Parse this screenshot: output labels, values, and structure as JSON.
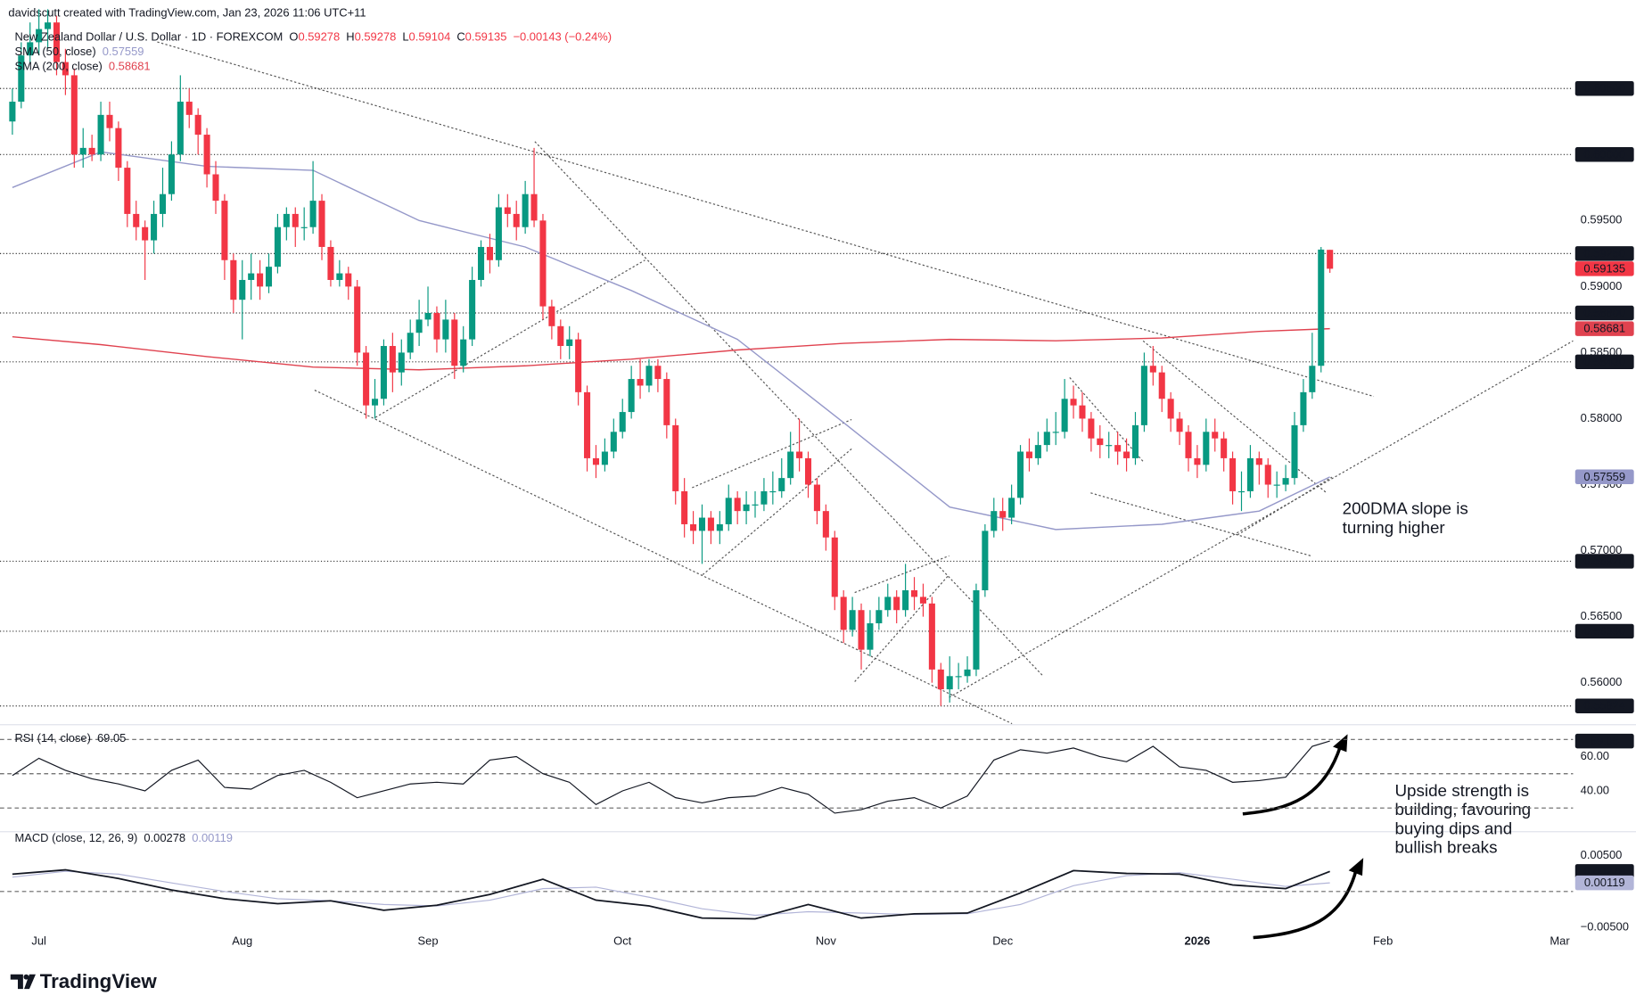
{
  "header": "davidscutt created with TradingView.com, Jan 23, 2026 11:06 UTC+11",
  "logo": "TradingView",
  "chart_data": [
    {
      "type": "candlestick",
      "title": "New Zealand Dollar / U.S. Dollar · 1D · FOREXCOM",
      "quote": [
        {
          "label": "O",
          "value": "0.59278"
        },
        {
          "label": "H",
          "value": "0.59278"
        },
        {
          "label": "L",
          "value": "0.59104"
        },
        {
          "label": "C",
          "value": "0.59135"
        }
      ],
      "change": "−0.00143 (−0.24%)",
      "xlim": [
        -1.4,
        176.5
      ],
      "xticks": [
        {
          "value": 3,
          "label": "Jul"
        },
        {
          "value": 26,
          "label": "Aug"
        },
        {
          "value": 47,
          "label": "Sep"
        },
        {
          "value": 69,
          "label": "Oct"
        },
        {
          "value": 92,
          "label": "Nov"
        },
        {
          "value": 112,
          "label": "Dec"
        },
        {
          "value": 134,
          "label": "2026"
        },
        {
          "value": 155,
          "label": "Feb"
        },
        {
          "value": 175,
          "label": "Mar"
        }
      ],
      "ylim": [
        0.5569,
        0.6117
      ],
      "yticks": [
        {
          "value": 0.595,
          "label": "0.59500"
        },
        {
          "value": 0.59,
          "label": "0.59000"
        },
        {
          "value": 0.585,
          "label": "0.58500"
        },
        {
          "value": 0.58,
          "label": "0.58000"
        },
        {
          "value": 0.575,
          "label": "0.57500"
        },
        {
          "value": 0.57,
          "label": "0.57000"
        },
        {
          "value": 0.565,
          "label": "0.56500"
        },
        {
          "value": 0.56,
          "label": "0.56000"
        }
      ],
      "levels": [
        {
          "value": 0.605,
          "label": "0.60500"
        },
        {
          "value": 0.6,
          "label": "0.60000"
        },
        {
          "value": 0.5925,
          "label": "0.59250"
        },
        {
          "value": 0.588,
          "label": "0.58800"
        },
        {
          "value": 0.5843,
          "label": "0.58430"
        },
        {
          "value": 0.5692,
          "label": "0.56920"
        },
        {
          "value": 0.5639,
          "label": "0.56390"
        },
        {
          "value": 0.55824,
          "label": "0.55824"
        }
      ],
      "candles": {
        "up_color": "#089981",
        "down_color": "#f23645",
        "last_label": "0.59135",
        "open": [
          0.6025,
          0.604,
          0.6075,
          0.6085,
          0.6095,
          0.61,
          0.607,
          0.606,
          0.6,
          0.6005,
          0.6,
          0.603,
          0.602,
          0.599,
          0.5955,
          0.5945,
          0.5935,
          0.5955,
          0.597,
          0.6,
          0.604,
          0.603,
          0.6015,
          0.5985,
          0.5965,
          0.592,
          0.589,
          0.5905,
          0.591,
          0.59,
          0.5915,
          0.5945,
          0.5955,
          0.5945,
          0.5945,
          0.5965,
          0.593,
          0.5905,
          0.591,
          0.59,
          0.585,
          0.581,
          0.5815,
          0.5855,
          0.5835,
          0.585,
          0.5865,
          0.5875,
          0.588,
          0.586,
          0.5875,
          0.584,
          0.586,
          0.5905,
          0.593,
          0.592,
          0.596,
          0.5955,
          0.5945,
          0.597,
          0.595,
          0.5885,
          0.587,
          0.5855,
          0.586,
          0.582,
          0.577,
          0.5765,
          0.5775,
          0.579,
          0.5805,
          0.583,
          0.5825,
          0.584,
          0.583,
          0.5795,
          0.5745,
          0.572,
          0.5715,
          0.5725,
          0.5715,
          0.572,
          0.574,
          0.573,
          0.5735,
          0.5735,
          0.5745,
          0.5745,
          0.5755,
          0.5775,
          0.577,
          0.575,
          0.573,
          0.571,
          0.5665,
          0.564,
          0.5655,
          0.5625,
          0.5645,
          0.5655,
          0.5665,
          0.5655,
          0.567,
          0.5665,
          0.566,
          0.561,
          0.5595,
          0.5605,
          0.5605,
          0.561,
          0.567,
          0.5715,
          0.573,
          0.5725,
          0.574,
          0.5775,
          0.577,
          0.578,
          0.579,
          0.579,
          0.5815,
          0.581,
          0.58,
          0.5785,
          0.578,
          0.578,
          0.5775,
          0.577,
          0.5795,
          0.584,
          0.5835,
          0.5815,
          0.58,
          0.579,
          0.577,
          0.5765,
          0.579,
          0.5785,
          0.577,
          0.5745,
          0.5745,
          0.577,
          0.5765,
          0.575,
          0.575,
          0.5755,
          0.5795,
          0.582,
          0.584,
          0.59278
        ],
        "high": [
          0.605,
          0.6085,
          0.61,
          0.611,
          0.611,
          0.6105,
          0.608,
          0.6065,
          0.602,
          0.6015,
          0.604,
          0.604,
          0.6025,
          0.5995,
          0.5965,
          0.595,
          0.5965,
          0.599,
          0.601,
          0.606,
          0.605,
          0.6035,
          0.602,
          0.5995,
          0.597,
          0.5925,
          0.592,
          0.5925,
          0.592,
          0.5925,
          0.5955,
          0.596,
          0.596,
          0.596,
          0.5995,
          0.597,
          0.5935,
          0.592,
          0.5915,
          0.5905,
          0.5855,
          0.583,
          0.586,
          0.5865,
          0.586,
          0.5875,
          0.589,
          0.59,
          0.5885,
          0.589,
          0.588,
          0.587,
          0.5915,
          0.5935,
          0.594,
          0.597,
          0.597,
          0.5965,
          0.598,
          0.6005,
          0.5955,
          0.589,
          0.5875,
          0.587,
          0.5865,
          0.5825,
          0.578,
          0.5785,
          0.58,
          0.5815,
          0.584,
          0.5845,
          0.5845,
          0.5845,
          0.5835,
          0.58,
          0.5755,
          0.573,
          0.5735,
          0.573,
          0.573,
          0.575,
          0.5745,
          0.5745,
          0.5745,
          0.5755,
          0.576,
          0.577,
          0.579,
          0.58,
          0.5775,
          0.5755,
          0.5735,
          0.5715,
          0.567,
          0.5665,
          0.566,
          0.5655,
          0.5665,
          0.5675,
          0.567,
          0.569,
          0.568,
          0.5675,
          0.5665,
          0.5615,
          0.562,
          0.5615,
          0.562,
          0.5675,
          0.572,
          0.574,
          0.574,
          0.575,
          0.578,
          0.5785,
          0.579,
          0.58,
          0.5805,
          0.583,
          0.5825,
          0.582,
          0.5805,
          0.5795,
          0.579,
          0.579,
          0.5785,
          0.5805,
          0.585,
          0.5855,
          0.584,
          0.582,
          0.5805,
          0.5795,
          0.578,
          0.58,
          0.58,
          0.579,
          0.5775,
          0.576,
          0.578,
          0.5775,
          0.577,
          0.576,
          0.5765,
          0.5805,
          0.583,
          0.5865,
          0.593,
          0.59278
        ],
        "low": [
          0.6015,
          0.6035,
          0.607,
          0.6075,
          0.608,
          0.606,
          0.6045,
          0.599,
          0.599,
          0.5995,
          0.5995,
          0.601,
          0.598,
          0.5945,
          0.5935,
          0.5905,
          0.5925,
          0.5945,
          0.5965,
          0.5995,
          0.602,
          0.6,
          0.5975,
          0.5955,
          0.5905,
          0.588,
          0.586,
          0.589,
          0.589,
          0.5895,
          0.591,
          0.5935,
          0.593,
          0.5935,
          0.594,
          0.592,
          0.59,
          0.59,
          0.589,
          0.584,
          0.58,
          0.58,
          0.581,
          0.582,
          0.5825,
          0.5845,
          0.5855,
          0.587,
          0.585,
          0.585,
          0.583,
          0.5835,
          0.5855,
          0.59,
          0.591,
          0.5915,
          0.5945,
          0.5935,
          0.594,
          0.5945,
          0.5875,
          0.586,
          0.5845,
          0.5845,
          0.581,
          0.576,
          0.5755,
          0.576,
          0.577,
          0.5785,
          0.58,
          0.5815,
          0.582,
          0.582,
          0.5785,
          0.5735,
          0.571,
          0.5705,
          0.569,
          0.5705,
          0.5705,
          0.5715,
          0.572,
          0.572,
          0.5725,
          0.573,
          0.5735,
          0.574,
          0.575,
          0.576,
          0.574,
          0.572,
          0.57,
          0.5655,
          0.563,
          0.5635,
          0.561,
          0.562,
          0.564,
          0.565,
          0.5645,
          0.565,
          0.5655,
          0.565,
          0.56,
          0.55824,
          0.5585,
          0.5595,
          0.56,
          0.5605,
          0.5665,
          0.571,
          0.5715,
          0.572,
          0.5735,
          0.576,
          0.5765,
          0.5775,
          0.578,
          0.5785,
          0.58,
          0.579,
          0.5775,
          0.577,
          0.577,
          0.5765,
          0.576,
          0.5765,
          0.579,
          0.5825,
          0.5805,
          0.579,
          0.578,
          0.576,
          0.5755,
          0.576,
          0.5775,
          0.576,
          0.5735,
          0.573,
          0.574,
          0.575,
          0.574,
          0.574,
          0.5745,
          0.575,
          0.579,
          0.5815,
          0.5835,
          0.59104
        ],
        "close": [
          0.604,
          0.6075,
          0.6085,
          0.6095,
          0.61,
          0.607,
          0.606,
          0.6,
          0.6005,
          0.6,
          0.603,
          0.602,
          0.599,
          0.5955,
          0.5945,
          0.5935,
          0.5955,
          0.597,
          0.6,
          0.604,
          0.603,
          0.6015,
          0.5985,
          0.5965,
          0.592,
          0.589,
          0.5905,
          0.591,
          0.59,
          0.5915,
          0.5945,
          0.5955,
          0.5945,
          0.5945,
          0.5965,
          0.593,
          0.5905,
          0.591,
          0.59,
          0.585,
          0.581,
          0.5815,
          0.5855,
          0.5835,
          0.585,
          0.5865,
          0.5875,
          0.588,
          0.586,
          0.5875,
          0.584,
          0.586,
          0.5905,
          0.593,
          0.592,
          0.596,
          0.5955,
          0.5945,
          0.597,
          0.595,
          0.5885,
          0.587,
          0.5855,
          0.586,
          0.582,
          0.577,
          0.5765,
          0.5775,
          0.579,
          0.5805,
          0.583,
          0.5825,
          0.584,
          0.583,
          0.5795,
          0.5745,
          0.572,
          0.5715,
          0.5725,
          0.5715,
          0.572,
          0.574,
          0.573,
          0.5735,
          0.5735,
          0.5745,
          0.5745,
          0.5755,
          0.5775,
          0.577,
          0.575,
          0.573,
          0.571,
          0.5665,
          0.564,
          0.5655,
          0.5625,
          0.5645,
          0.5655,
          0.5665,
          0.5655,
          0.567,
          0.5665,
          0.566,
          0.561,
          0.5595,
          0.5605,
          0.5605,
          0.561,
          0.567,
          0.5715,
          0.573,
          0.5725,
          0.574,
          0.5775,
          0.577,
          0.578,
          0.579,
          0.579,
          0.5815,
          0.581,
          0.58,
          0.5785,
          0.578,
          0.578,
          0.5775,
          0.577,
          0.5795,
          0.584,
          0.5835,
          0.5815,
          0.58,
          0.579,
          0.577,
          0.5765,
          0.579,
          0.5785,
          0.577,
          0.5745,
          0.5745,
          0.577,
          0.5765,
          0.575,
          0.575,
          0.5755,
          0.5795,
          0.582,
          0.584,
          0.5928,
          0.59135
        ]
      },
      "series": [
        {
          "name": "SMA (50, close)",
          "color": "#9598c9",
          "last_label": "0.57559",
          "x": [
            0,
            10,
            22,
            34,
            46,
            58,
            70,
            82,
            94,
            106,
            118,
            130,
            141,
            149
          ],
          "values": [
            0.5975,
            0.6002,
            0.5991,
            0.5988,
            0.595,
            0.593,
            0.5897,
            0.586,
            0.5797,
            0.5733,
            0.5716,
            0.572,
            0.573,
            0.57559
          ]
        },
        {
          "name": "SMA (200, close)",
          "color": "#e0424f",
          "last_label": "0.58681",
          "x": [
            0,
            10,
            22,
            34,
            46,
            58,
            70,
            82,
            94,
            106,
            118,
            130,
            141,
            149
          ],
          "values": [
            0.5862,
            0.5856,
            0.5847,
            0.5839,
            0.5837,
            0.584,
            0.5845,
            0.5852,
            0.5857,
            0.586,
            0.5859,
            0.5861,
            0.5866,
            0.58681
          ]
        }
      ],
      "annotations": [
        [
          "200DMA slope is",
          "turning higher"
        ],
        [
          "Upside strength is",
          "building, favouring",
          "buying dips and",
          "bullish breaks"
        ]
      ]
    },
    {
      "type": "line",
      "title": "RSI (14, close)",
      "color": "#131722",
      "last_label": "69.05",
      "ylim": [
        18,
        78
      ],
      "yticks": [
        {
          "value": 60,
          "label": "60.00"
        },
        {
          "value": 40,
          "label": "40.00"
        }
      ],
      "hlines": [
        70,
        50,
        30
      ],
      "x": [
        0,
        3,
        6,
        9,
        12,
        15,
        18,
        21,
        24,
        27,
        30,
        33,
        36,
        39,
        42,
        45,
        48,
        51,
        54,
        57,
        60,
        63,
        66,
        69,
        72,
        75,
        78,
        81,
        84,
        87,
        90,
        93,
        96,
        99,
        102,
        105,
        108,
        111,
        114,
        117,
        120,
        123,
        126,
        129,
        132,
        135,
        138,
        141,
        144,
        147,
        149
      ],
      "values": [
        49,
        59,
        52,
        47,
        44,
        40,
        52,
        58,
        42,
        41,
        49,
        52,
        45,
        36,
        40,
        44,
        45,
        44,
        58,
        60,
        50,
        45,
        32,
        40,
        45,
        36,
        33,
        36,
        37,
        42,
        38,
        27,
        29,
        34,
        36,
        30,
        37,
        58,
        64,
        62,
        65,
        60,
        57,
        66,
        54,
        52,
        45,
        46,
        48,
        66,
        69.05
      ]
    },
    {
      "type": "line",
      "title": "MACD (close, 12, 26, 9)",
      "ylim": [
        -0.008,
        0.008
      ],
      "yticks": [
        {
          "value": 0.005,
          "label": "0.00500"
        },
        {
          "value": -0.005,
          "label": "−0.00500"
        }
      ],
      "hlines": [
        0
      ],
      "x": [
        0,
        6,
        12,
        18,
        24,
        30,
        36,
        42,
        48,
        54,
        60,
        66,
        72,
        78,
        84,
        90,
        96,
        102,
        108,
        114,
        120,
        126,
        132,
        138,
        144,
        149
      ],
      "series": [
        {
          "color": "#131722",
          "last_label": "0.00278",
          "values": [
            0.0024,
            0.003,
            0.0018,
            0.0002,
            -0.001,
            -0.0017,
            -0.0013,
            -0.0026,
            -0.0019,
            -0.0004,
            0.0017,
            -0.0012,
            -0.002,
            -0.0037,
            -0.0038,
            -0.0018,
            -0.0037,
            -0.0031,
            -0.003,
            -0.0002,
            0.0029,
            0.0025,
            0.0024,
            0.0009,
            0.0004,
            0.00278
          ]
        },
        {
          "color": "#b2b5d8",
          "last_label": "0.00119",
          "values": [
            0.002,
            0.0028,
            0.0024,
            0.0012,
            0.0,
            -0.001,
            -0.0013,
            -0.0018,
            -0.002,
            -0.0012,
            0.0004,
            0.0006,
            -0.0008,
            -0.0024,
            -0.0033,
            -0.0028,
            -0.003,
            -0.0032,
            -0.0031,
            -0.0018,
            0.0008,
            0.0022,
            0.0026,
            0.0017,
            0.0007,
            0.00119
          ]
        }
      ]
    }
  ]
}
